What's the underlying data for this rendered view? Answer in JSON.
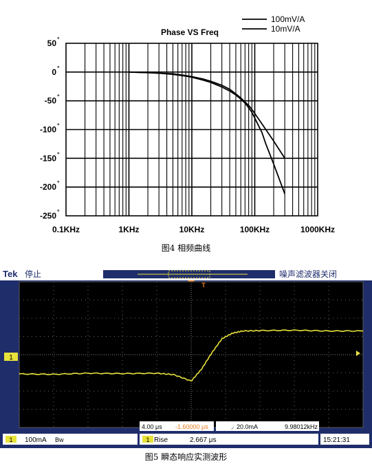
{
  "fig4_caption": "图4 相频曲线",
  "fig5_caption": "图5 瞬态响应实测波形",
  "chart_data": [
    {
      "type": "line",
      "title": "Phase VS Freq",
      "xscale": "log",
      "xlim": [
        0.1,
        1000
      ],
      "ylim": [
        -250,
        50
      ],
      "grid": true,
      "legend_position": "top-right",
      "x_tick_labels": [
        "0.1KHz",
        "1KHz",
        "10KHz",
        "100KHz",
        "1000KHz"
      ],
      "y_tick_values": [
        50,
        0,
        -50,
        -100,
        -150,
        -200,
        -250
      ],
      "y_tick_suffix": "°",
      "series": [
        {
          "name": "100mV/A",
          "x": [
            1,
            2,
            3,
            5,
            8,
            10,
            15,
            20,
            30,
            40,
            50,
            60,
            70,
            80,
            90,
            100,
            130,
            150,
            200,
            300
          ],
          "y": [
            0,
            -1,
            -2,
            -3,
            -6,
            -8,
            -12,
            -16,
            -23,
            -30,
            -38,
            -45,
            -52,
            -58,
            -65,
            -72,
            -90,
            -100,
            -120,
            -150
          ]
        },
        {
          "name": "10mV/A",
          "x": [
            1,
            2,
            3,
            5,
            8,
            10,
            15,
            20,
            30,
            40,
            50,
            60,
            70,
            80,
            90,
            100,
            130,
            150,
            200,
            300
          ],
          "y": [
            0,
            -1,
            -2,
            -4,
            -7,
            -9,
            -14,
            -18,
            -26,
            -33,
            -40,
            -47,
            -54,
            -62,
            -70,
            -80,
            -105,
            -125,
            -160,
            -212
          ]
        }
      ]
    },
    {
      "type": "line",
      "scope": {
        "brand": "Tek",
        "mode": "停止",
        "noise_filter": "噪声滤波器关闭",
        "ch_marker": "1",
        "t_marker": "T",
        "timebase": "4.00 μs",
        "trig_pos": "-1.60000 μs",
        "trig_level": "20.0mA",
        "freq": "9.98012kHz",
        "ch1_scale": "100mA",
        "ch1_bw": "Bw",
        "meas_label": "Rise",
        "meas_value": "2.667 μs",
        "clock": "15:21:31"
      },
      "xlim": [
        -5,
        5
      ],
      "ylim": [
        -4,
        4
      ],
      "trace_color": "#e8e23a",
      "x": [
        -5,
        -4,
        -3,
        -2,
        -1,
        -0.5,
        0,
        0.3,
        0.6,
        0.9,
        1.2,
        1.5,
        2,
        3,
        4,
        5
      ],
      "y": [
        -1.06,
        -1.08,
        -1.02,
        -1.04,
        -1.02,
        -1.1,
        -1.45,
        -0.8,
        0.1,
        0.88,
        1.18,
        1.3,
        1.32,
        1.34,
        1.3,
        1.3
      ]
    }
  ]
}
